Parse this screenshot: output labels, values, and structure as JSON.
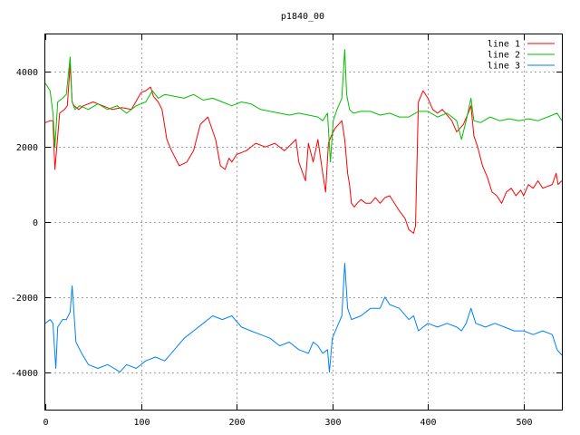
{
  "chart_data": {
    "type": "line",
    "title": "p1840_00",
    "xlabel": "",
    "ylabel": "",
    "xlim": [
      0,
      540
    ],
    "ylim": [
      -5000,
      5000
    ],
    "xticks": [
      0,
      100,
      200,
      300,
      400,
      500
    ],
    "yticks": [
      -4000,
      -2000,
      0,
      2000,
      4000
    ],
    "grid": true,
    "legend_position": "top-right",
    "series": [
      {
        "name": "line 1",
        "color": "#ff0000",
        "x": [
          0,
          5,
          8,
          10,
          12,
          15,
          20,
          23,
          26,
          28,
          30,
          35,
          40,
          50,
          60,
          70,
          80,
          90,
          100,
          105,
          110,
          113,
          118,
          122,
          127,
          132,
          140,
          148,
          155,
          162,
          170,
          178,
          183,
          188,
          192,
          195,
          200,
          210,
          220,
          230,
          240,
          250,
          258,
          262,
          265,
          272,
          275,
          280,
          285,
          290,
          293,
          296,
          299,
          303,
          310,
          313,
          316,
          318,
          320,
          323,
          326,
          330,
          335,
          340,
          345,
          350,
          355,
          360,
          370,
          376,
          380,
          385,
          387,
          390,
          395,
          400,
          405,
          410,
          415,
          425,
          430,
          437,
          442,
          445,
          448,
          452,
          457,
          462,
          467,
          472,
          477,
          482,
          487,
          492,
          497,
          500,
          505,
          510,
          515,
          520,
          530,
          534,
          536,
          540
        ],
        "y": [
          2650,
          2700,
          2700,
          1400,
          2000,
          2900,
          3000,
          3100,
          4200,
          3200,
          3100,
          3000,
          3100,
          3200,
          3100,
          3000,
          3050,
          3000,
          3450,
          3500,
          3600,
          3350,
          3200,
          3000,
          2200,
          1900,
          1500,
          1600,
          1900,
          2600,
          2800,
          2200,
          1500,
          1400,
          1700,
          1600,
          1800,
          1900,
          2100,
          2000,
          2100,
          1900,
          2100,
          2200,
          1600,
          1100,
          2100,
          1600,
          2200,
          1300,
          800,
          2100,
          2300,
          2500,
          2700,
          2200,
          1300,
          1000,
          500,
          400,
          500,
          600,
          500,
          500,
          650,
          500,
          650,
          700,
          300,
          100,
          -200,
          -300,
          -100,
          3200,
          3500,
          3300,
          3000,
          2900,
          3000,
          2700,
          2400,
          2600,
          2900,
          3100,
          2300,
          2000,
          1500,
          1200,
          800,
          700,
          500,
          800,
          900,
          700,
          850,
          700,
          1000,
          900,
          1100,
          900,
          1000,
          1300,
          1000,
          1100
        ]
      },
      {
        "name": "line 2",
        "color": "#00c000",
        "x": [
          0,
          5,
          8,
          10,
          13,
          18,
          22,
          26,
          28,
          31,
          36,
          45,
          55,
          65,
          75,
          85,
          95,
          105,
          112,
          118,
          125,
          135,
          145,
          155,
          165,
          175,
          185,
          195,
          205,
          215,
          225,
          235,
          245,
          255,
          265,
          275,
          285,
          290,
          295,
          298,
          301,
          305,
          310,
          313,
          315,
          318,
          322,
          330,
          340,
          350,
          360,
          370,
          380,
          390,
          400,
          410,
          420,
          430,
          435,
          440,
          445,
          448,
          455,
          465,
          475,
          485,
          495,
          505,
          515,
          525,
          535,
          540
        ],
        "y": [
          3700,
          3500,
          2900,
          2000,
          3200,
          3300,
          3400,
          4400,
          3200,
          3000,
          3100,
          3000,
          3150,
          3000,
          3100,
          2900,
          3100,
          3200,
          3500,
          3300,
          3400,
          3350,
          3300,
          3400,
          3250,
          3300,
          3200,
          3100,
          3200,
          3150,
          3000,
          2950,
          2900,
          2850,
          2900,
          2850,
          2800,
          2700,
          2900,
          1600,
          2700,
          3000,
          3300,
          4600,
          3400,
          3000,
          2900,
          2950,
          2950,
          2850,
          2900,
          2800,
          2800,
          2950,
          2950,
          2800,
          2900,
          2700,
          2200,
          2700,
          3300,
          2700,
          2650,
          2800,
          2700,
          2750,
          2700,
          2750,
          2700,
          2800,
          2900,
          2700
        ]
      },
      {
        "name": "line 3",
        "color": "#0080ff",
        "x": [
          0,
          5,
          8,
          11,
          13,
          18,
          22,
          26,
          28,
          32,
          38,
          45,
          55,
          65,
          72,
          78,
          85,
          95,
          105,
          115,
          125,
          135,
          145,
          155,
          165,
          175,
          185,
          195,
          205,
          215,
          225,
          235,
          245,
          255,
          265,
          275,
          280,
          285,
          290,
          295,
          297,
          300,
          305,
          310,
          313,
          316,
          320,
          330,
          340,
          350,
          355,
          360,
          370,
          380,
          385,
          390,
          395,
          400,
          410,
          420,
          430,
          435,
          440,
          445,
          450,
          460,
          470,
          480,
          490,
          500,
          510,
          520,
          530,
          535,
          540
        ],
        "y": [
          -2700,
          -2600,
          -2700,
          -3900,
          -2800,
          -2600,
          -2600,
          -2400,
          -1700,
          -3200,
          -3500,
          -3800,
          -3900,
          -3800,
          -3900,
          -4000,
          -3800,
          -3900,
          -3700,
          -3600,
          -3700,
          -3400,
          -3100,
          -2900,
          -2700,
          -2500,
          -2600,
          -2500,
          -2800,
          -2900,
          -3000,
          -3100,
          -3300,
          -3200,
          -3400,
          -3500,
          -3200,
          -3300,
          -3500,
          -3400,
          -4000,
          -3100,
          -2800,
          -2500,
          -1100,
          -2300,
          -2600,
          -2500,
          -2300,
          -2300,
          -2000,
          -2200,
          -2300,
          -2600,
          -2500,
          -2900,
          -2800,
          -2700,
          -2800,
          -2700,
          -2800,
          -2900,
          -2700,
          -2300,
          -2700,
          -2800,
          -2700,
          -2800,
          -2900,
          -2900,
          -3000,
          -2900,
          -3000,
          -3400,
          -3550
        ]
      }
    ]
  }
}
